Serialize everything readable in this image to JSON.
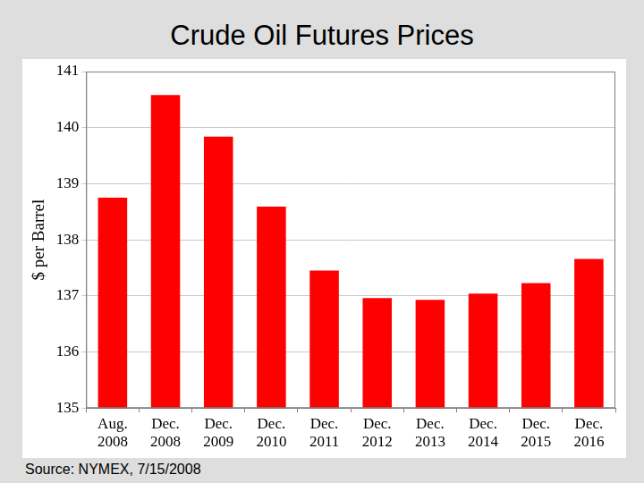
{
  "chart_data": {
    "type": "bar",
    "title": "Crude Oil Futures Prices",
    "y_label": "$ per Barrel",
    "annotation": "Source: NYMEX, 7/15/2008",
    "categories": [
      "Aug. 2008",
      "Dec. 2008",
      "Dec. 2009",
      "Dec. 2010",
      "Dec. 2011",
      "Dec. 2012",
      "Dec. 2013",
      "Dec. 2014",
      "Dec. 2015",
      "Dec. 2016"
    ],
    "values": [
      138.75,
      140.58,
      139.84,
      138.59,
      137.45,
      136.96,
      136.93,
      137.04,
      137.23,
      137.66
    ],
    "color": "#ff0000",
    "ylim": [
      135,
      141
    ],
    "yticks": [
      135,
      136,
      137,
      138,
      139,
      140,
      141
    ],
    "grid": true
  }
}
